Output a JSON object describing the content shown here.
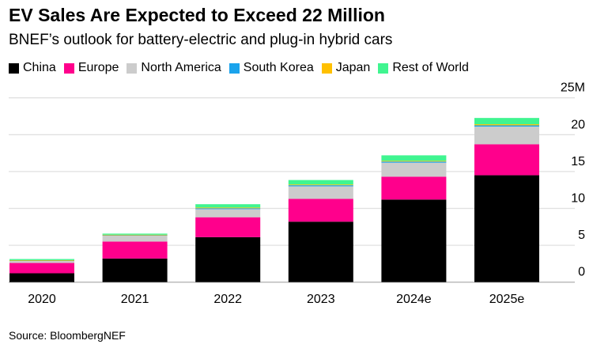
{
  "title": "EV Sales Are Expected to Exceed 22 Million",
  "subtitle": "BNEF’s outlook for battery-electric and plug-in hybrid cars",
  "source": "Source: BloombergNEF",
  "chart_data": {
    "type": "bar",
    "stacked": true,
    "title": "EV Sales Are Expected to Exceed 22 Million",
    "subtitle": "BNEF’s outlook for battery-electric and plug-in hybrid cars",
    "categories": [
      "2020",
      "2021",
      "2022",
      "2023",
      "2024e",
      "2025e"
    ],
    "series": [
      {
        "name": "China",
        "color": "#000000",
        "values": [
          1.2,
          3.2,
          6.1,
          8.2,
          11.2,
          14.5
        ]
      },
      {
        "name": "Europe",
        "color": "#ff008c",
        "values": [
          1.4,
          2.3,
          2.7,
          3.1,
          3.1,
          4.2
        ]
      },
      {
        "name": "North America",
        "color": "#cccccc",
        "values": [
          0.3,
          0.8,
          1.1,
          1.7,
          1.9,
          2.4
        ]
      },
      {
        "name": "South Korea",
        "color": "#1aa3ec",
        "values": [
          0.05,
          0.1,
          0.12,
          0.15,
          0.15,
          0.17
        ]
      },
      {
        "name": "Japan",
        "color": "#ffc000",
        "values": [
          0.03,
          0.03,
          0.1,
          0.1,
          0.1,
          0.15
        ]
      },
      {
        "name": "Rest of World",
        "color": "#40f590",
        "values": [
          0.15,
          0.15,
          0.45,
          0.6,
          0.75,
          0.85
        ]
      }
    ],
    "yticks": [
      "0",
      "5",
      "10",
      "15",
      "20",
      "25M"
    ],
    "ylim": [
      0,
      25
    ],
    "grid": true,
    "legend": "top-left",
    "yaxis_side": "right"
  }
}
